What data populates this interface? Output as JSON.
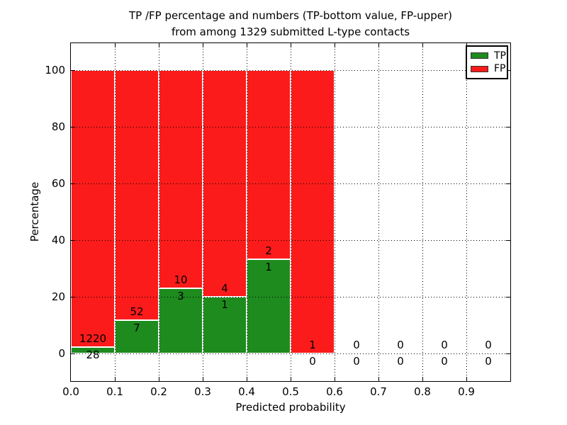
{
  "chart_data": {
    "type": "bar",
    "stacked": true,
    "title_lines": [
      "TP /FP percentage and numbers (TP-bottom value, FP-upper)",
      "from among 1329 submitted L-type contacts"
    ],
    "total_submitted_contacts": 1329,
    "xlabel": "Predicted probability",
    "ylabel": "Percentage",
    "xlim": [
      0.0,
      1.0
    ],
    "ylim": [
      -9.75,
      109.5
    ],
    "grid": "dotted-black",
    "legend_position": "upper-right",
    "tp_color": "#1e8b1e",
    "fp_color": "#fb1b1b",
    "bar_edge_color": "#ffffff",
    "legend": [
      {
        "label": "TP",
        "color": "#1e8b1e"
      },
      {
        "label": "FP",
        "color": "#fb1b1b"
      }
    ],
    "x_ticks": [
      {
        "v": 0.0,
        "label": "0.0"
      },
      {
        "v": 0.1,
        "label": "0.1"
      },
      {
        "v": 0.2,
        "label": "0.2"
      },
      {
        "v": 0.3,
        "label": "0.3"
      },
      {
        "v": 0.4,
        "label": "0.4"
      },
      {
        "v": 0.5,
        "label": "0.5"
      },
      {
        "v": 0.6,
        "label": "0.6"
      },
      {
        "v": 0.7,
        "label": "0.7"
      },
      {
        "v": 0.8,
        "label": "0.8"
      },
      {
        "v": 0.9,
        "label": "0.9"
      }
    ],
    "y_ticks": [
      {
        "v": 0,
        "label": "0"
      },
      {
        "v": 20,
        "label": "20"
      },
      {
        "v": 40,
        "label": "40"
      },
      {
        "v": 60,
        "label": "60"
      },
      {
        "v": 80,
        "label": "80"
      },
      {
        "v": 100,
        "label": "100"
      }
    ],
    "bins": [
      {
        "x0": 0.0,
        "x1": 0.1,
        "tp": 28,
        "fp": 1220,
        "tp_pct": 2.24,
        "fp_pct": 97.76
      },
      {
        "x0": 0.1,
        "x1": 0.2,
        "tp": 7,
        "fp": 52,
        "tp_pct": 11.86,
        "fp_pct": 88.14
      },
      {
        "x0": 0.2,
        "x1": 0.3,
        "tp": 3,
        "fp": 10,
        "tp_pct": 23.08,
        "fp_pct": 76.92
      },
      {
        "x0": 0.3,
        "x1": 0.4,
        "tp": 1,
        "fp": 4,
        "tp_pct": 20.0,
        "fp_pct": 80.0
      },
      {
        "x0": 0.4,
        "x1": 0.5,
        "tp": 1,
        "fp": 2,
        "tp_pct": 33.33,
        "fp_pct": 66.67
      },
      {
        "x0": 0.5,
        "x1": 0.6,
        "tp": 0,
        "fp": 1,
        "tp_pct": 0.0,
        "fp_pct": 100.0
      },
      {
        "x0": 0.6,
        "x1": 0.7,
        "tp": 0,
        "fp": 0,
        "tp_pct": 0.0,
        "fp_pct": 0.0
      },
      {
        "x0": 0.7,
        "x1": 0.8,
        "tp": 0,
        "fp": 0,
        "tp_pct": 0.0,
        "fp_pct": 0.0
      },
      {
        "x0": 0.8,
        "x1": 0.9,
        "tp": 0,
        "fp": 0,
        "tp_pct": 0.0,
        "fp_pct": 0.0
      },
      {
        "x0": 0.9,
        "x1": 1.0,
        "tp": 0,
        "fp": 0,
        "tp_pct": 0.0,
        "fp_pct": 0.0
      }
    ]
  }
}
